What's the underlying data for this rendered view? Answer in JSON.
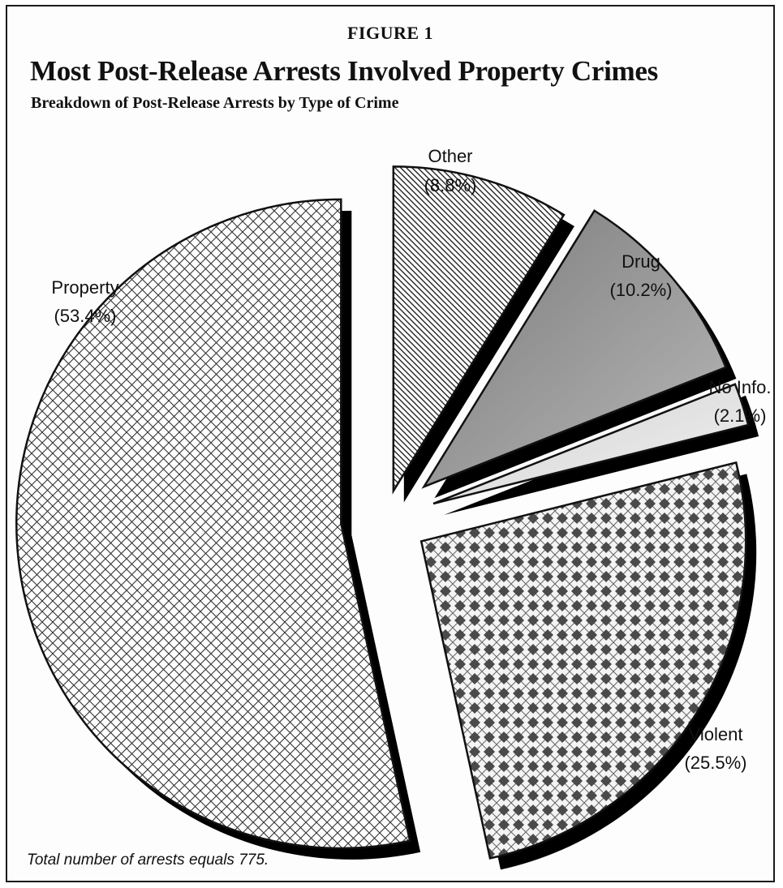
{
  "figure_label": "FIGURE 1",
  "footnote": "Total number of arrests equals 775.",
  "chart_data": {
    "type": "pie",
    "title": "Most Post-Release Arrests Involved Property Crimes",
    "subtitle": "Breakdown of Post-Release Arrests by Type of Crime",
    "exploded": true,
    "shadow": true,
    "categories": [
      "Other",
      "Drug",
      "No Info.",
      "Violent",
      "Property"
    ],
    "values": [
      8.8,
      10.2,
      2.1,
      25.5,
      53.4
    ],
    "value_labels": [
      "(8.8%)",
      "(10.2%)",
      "(2.1%)",
      "(25.5%)",
      "(53.4%)"
    ],
    "patterns": [
      "diagonal-hatch",
      "dark-gray-shaded",
      "light-gray-shaded",
      "diamond-checker",
      "crosshatch"
    ],
    "colors": [
      "#6e6e6e",
      "#9a9a9a",
      "#dcdcdc",
      "#444444",
      "#555555"
    ]
  }
}
